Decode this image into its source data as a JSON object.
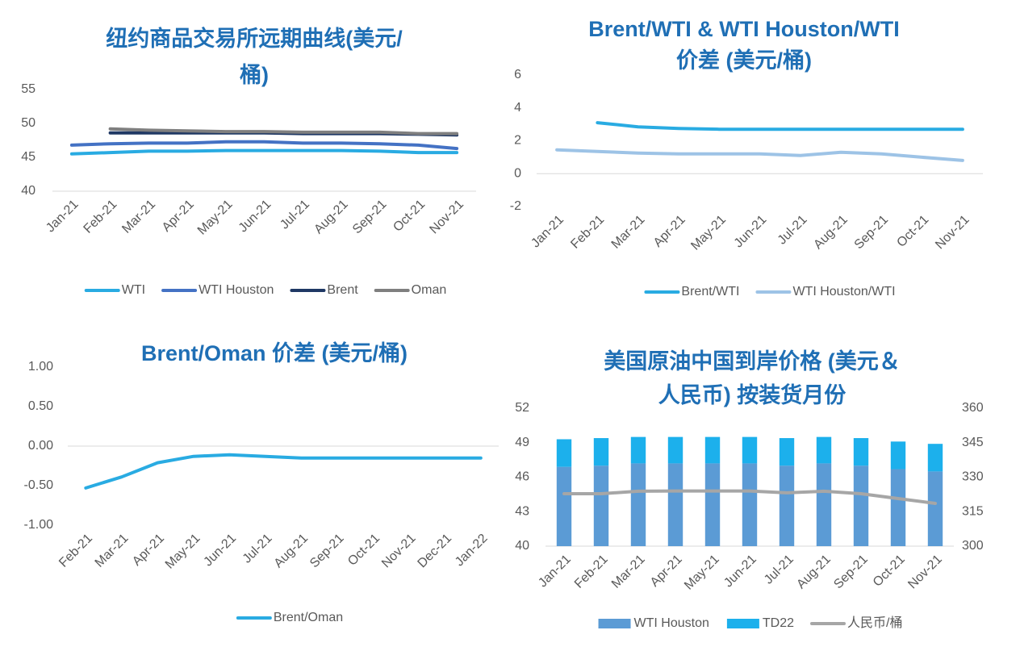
{
  "chart_data": [
    {
      "type": "line",
      "title": [
        "纽约商品交易所远期曲线(美元/",
        "桶)"
      ],
      "categories": [
        "Jan-21",
        "Feb-21",
        "Mar-21",
        "Apr-21",
        "May-21",
        "Jun-21",
        "Jul-21",
        "Aug-21",
        "Sep-21",
        "Oct-21",
        "Nov-21"
      ],
      "series": [
        {
          "name": "WTI",
          "color": "#29abe2",
          "values": [
            45.5,
            45.7,
            45.9,
            45.9,
            46.0,
            46.0,
            46.0,
            46.0,
            45.9,
            45.7,
            45.7
          ]
        },
        {
          "name": "WTI Houston",
          "color": "#4472c4",
          "values": [
            46.8,
            47.0,
            47.1,
            47.1,
            47.3,
            47.3,
            47.1,
            47.1,
            47.0,
            46.8,
            46.3
          ]
        },
        {
          "name": "Brent",
          "color": "#1f3864",
          "values": [
            null,
            48.6,
            48.6,
            48.6,
            48.6,
            48.6,
            48.5,
            48.5,
            48.5,
            48.4,
            48.3
          ]
        },
        {
          "name": "Oman",
          "color": "#7f7f7f",
          "values": [
            null,
            49.2,
            49.0,
            48.9,
            48.8,
            48.8,
            48.7,
            48.7,
            48.7,
            48.5,
            48.5
          ]
        }
      ],
      "ylim": [
        40,
        55
      ],
      "yticks": [
        40,
        45,
        50,
        55
      ],
      "legend": "bottom"
    },
    {
      "type": "line",
      "title": [
        "Brent/WTI & WTI Houston/WTI",
        "价差 (美元/桶)"
      ],
      "categories": [
        "Jan-21",
        "Feb-21",
        "Mar-21",
        "Apr-21",
        "May-21",
        "Jun-21",
        "Jul-21",
        "Aug-21",
        "Sep-21",
        "Oct-21",
        "Nov-21"
      ],
      "series": [
        {
          "name": "Brent/WTI",
          "color": "#29abe2",
          "values": [
            null,
            3.1,
            2.85,
            2.75,
            2.7,
            2.7,
            2.7,
            2.7,
            2.7,
            2.7,
            2.7
          ]
        },
        {
          "name": "WTI Houston/WTI",
          "color": "#9dc3e6",
          "values": [
            1.45,
            1.35,
            1.25,
            1.2,
            1.2,
            1.2,
            1.1,
            1.3,
            1.2,
            1.0,
            0.8
          ]
        }
      ],
      "ylim": [
        -2,
        6
      ],
      "yticks": [
        -2,
        0,
        2,
        4,
        6
      ],
      "legend": "bottom"
    },
    {
      "type": "line",
      "title": [
        "Brent/Oman 价差 (美元/桶)"
      ],
      "categories": [
        "Feb-21",
        "Mar-21",
        "Apr-21",
        "May-21",
        "Jun-21",
        "Jul-21",
        "Aug-21",
        "Sep-21",
        "Oct-21",
        "Nov-21",
        "Dec-21",
        "Jan-22"
      ],
      "series": [
        {
          "name": "Brent/Oman",
          "color": "#29abe2",
          "values": [
            -0.53,
            -0.39,
            -0.21,
            -0.13,
            -0.11,
            -0.13,
            -0.15,
            -0.15,
            -0.15,
            -0.15,
            -0.15,
            -0.15
          ]
        }
      ],
      "ylim": [
        -1,
        1
      ],
      "yticks": [
        {
          "value": -1,
          "label": "-1.00"
        },
        {
          "value": -0.5,
          "label": "-0.50"
        },
        {
          "value": 0,
          "label": "0.00"
        },
        {
          "value": 0.5,
          "label": "0.50"
        },
        {
          "value": 1,
          "label": "1.00"
        }
      ],
      "legend": "bottom"
    },
    {
      "type": "bar",
      "stacked": true,
      "title": [
        "美国原油中国到岸价格 (美元＆",
        "人民币) 按装货月份"
      ],
      "categories": [
        "Jan-21",
        "Feb-21",
        "Mar-21",
        "Apr-21",
        "May-21",
        "Jun-21",
        "Jul-21",
        "Aug-21",
        "Sep-21",
        "Oct-21",
        "Nov-21"
      ],
      "series": [
        {
          "name": "WTI Houston",
          "color": "#5b9bd5",
          "values": [
            46.9,
            47.0,
            47.2,
            47.2,
            47.2,
            47.2,
            47.0,
            47.2,
            47.0,
            46.7,
            46.5
          ]
        },
        {
          "name": "TD22",
          "color": "#1cb0ec",
          "values": [
            2.4,
            2.4,
            2.3,
            2.3,
            2.3,
            2.3,
            2.4,
            2.3,
            2.4,
            2.4,
            2.4
          ]
        },
        {
          "name": "人民币/桶",
          "color": "#a6a6a6",
          "type": "line",
          "axis": "y2",
          "values": [
            322.8,
            322.8,
            323.9,
            324,
            324,
            324,
            323.2,
            323.9,
            322.8,
            320.7,
            318.6
          ]
        }
      ],
      "ylim": [
        40,
        52
      ],
      "yticks": [
        40,
        43,
        46,
        49,
        52
      ],
      "y2lim": [
        300,
        360
      ],
      "y2ticks": [
        300,
        315,
        330,
        345,
        360
      ],
      "legend": "bottom"
    }
  ]
}
